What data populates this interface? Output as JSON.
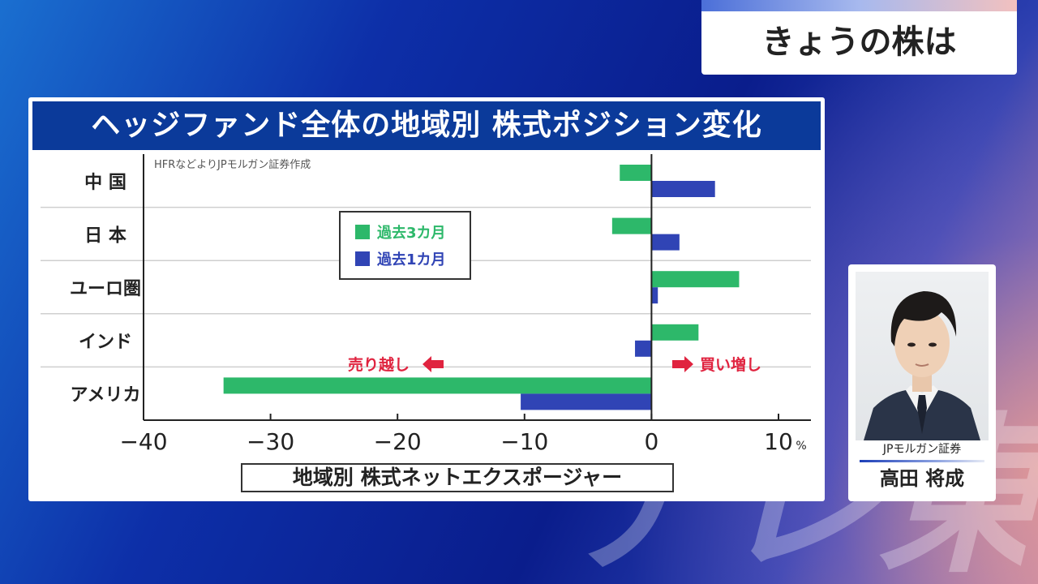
{
  "header_badge": {
    "text": "きょうの株は"
  },
  "watermark": {
    "text": "テレ東"
  },
  "person": {
    "company": "JPモルガン証券",
    "name": "高田 将成"
  },
  "colors": {
    "past3": "#2db86a",
    "past1": "#3044b5",
    "title_bg": "#0b3a9a",
    "arrow": "#e0233f"
  },
  "chart_data": {
    "type": "bar",
    "orientation": "horizontal",
    "title": "ヘッジファンド全体の地域別 株式ポジション変化",
    "source": "HFRなどよりJPモルガン証券作成",
    "categories": [
      "中 国",
      "日 本",
      "ユーロ圏",
      "インド",
      "アメリカ"
    ],
    "series": [
      {
        "name": "過去3カ月",
        "color": "#2db86a",
        "values": [
          -2.5,
          -3.1,
          6.9,
          3.7,
          -33.7
        ]
      },
      {
        "name": "過去1カ月",
        "color": "#3044b5",
        "values": [
          5.0,
          2.2,
          0.5,
          -1.3,
          -10.3
        ]
      }
    ],
    "xlim": [
      -40,
      12
    ],
    "xticks": [
      {
        "value": -40,
        "label": "−40"
      },
      {
        "value": -30,
        "label": "−30"
      },
      {
        "value": -20,
        "label": "−20"
      },
      {
        "value": -10,
        "label": "−10"
      },
      {
        "value": 0,
        "label": "0"
      },
      {
        "value": 10,
        "label": "10"
      }
    ],
    "x_unit": "%",
    "xlabel": "地域別 株式ネットエクスポージャー",
    "annotations": {
      "sell": "売り越し",
      "buy": "買い増し"
    },
    "grid": "horizontal",
    "legend_position": "center-left"
  }
}
